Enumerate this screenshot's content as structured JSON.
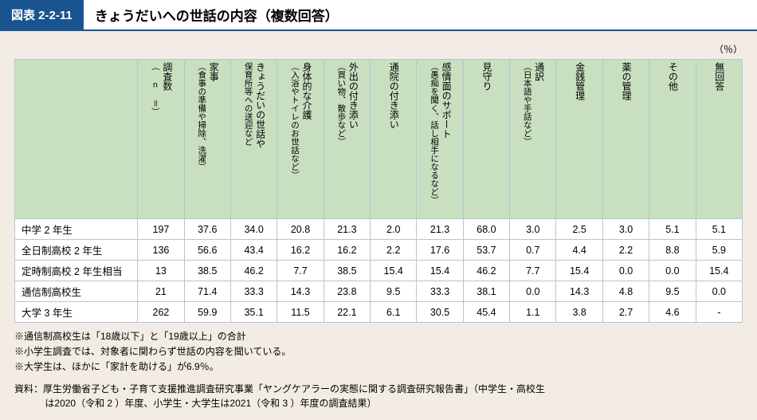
{
  "title": {
    "tag": "図表 2-2-11",
    "text": "きょうだいへの世話の内容（複数回答）"
  },
  "unit_label": "（％）",
  "table": {
    "columns": [
      {
        "label": "調査数",
        "sub": "（ n ＝）"
      },
      {
        "label": "家事",
        "sub": "（食事の準備や掃除、洗濯）"
      },
      {
        "label": "きょうだいの世話や",
        "sub": "保育所等への送迎など"
      },
      {
        "label": "身体的な介護",
        "sub": "（入浴やトイレのお世話など）"
      },
      {
        "label": "外出の付き添い",
        "sub": "（買い物、散歩など）"
      },
      {
        "label": "通院の付き添い",
        "sub": ""
      },
      {
        "label": "感情面のサポート",
        "sub": "（愚痴を聞く、話し相手になるなど）"
      },
      {
        "label": "見守り",
        "sub": ""
      },
      {
        "label": "通訳",
        "sub": "（日本語や手話など）"
      },
      {
        "label": "金銭管理",
        "sub": ""
      },
      {
        "label": "薬の管理",
        "sub": ""
      },
      {
        "label": "その他",
        "sub": ""
      },
      {
        "label": "無回答",
        "sub": ""
      }
    ],
    "rows": [
      {
        "label": "中学 2 年生",
        "cells": [
          "197",
          "37.6",
          "34.0",
          "20.8",
          "21.3",
          "2.0",
          "21.3",
          "68.0",
          "3.0",
          "2.5",
          "3.0",
          "5.1",
          "5.1"
        ]
      },
      {
        "label": "全日制高校 2 年生",
        "cells": [
          "136",
          "56.6",
          "43.4",
          "16.2",
          "16.2",
          "2.2",
          "17.6",
          "53.7",
          "0.7",
          "4.4",
          "2.2",
          "8.8",
          "5.9"
        ]
      },
      {
        "label": "定時制高校 2 年生相当",
        "cells": [
          "13",
          "38.5",
          "46.2",
          "7.7",
          "38.5",
          "15.4",
          "15.4",
          "46.2",
          "7.7",
          "15.4",
          "0.0",
          "0.0",
          "15.4"
        ]
      },
      {
        "label": "通信制高校生",
        "cells": [
          "21",
          "71.4",
          "33.3",
          "14.3",
          "23.8",
          "9.5",
          "33.3",
          "38.1",
          "0.0",
          "14.3",
          "4.8",
          "9.5",
          "0.0"
        ]
      },
      {
        "label": "大学 3 年生",
        "cells": [
          "262",
          "59.9",
          "35.1",
          "11.5",
          "22.1",
          "6.1",
          "30.5",
          "45.4",
          "1.1",
          "3.8",
          "2.7",
          "4.6",
          "-"
        ]
      }
    ]
  },
  "notes": {
    "n1": "※通信制高校生は「18歳以下」と「19歳以上」の合計",
    "n2": "※小学生調査では、対象者に関わらず世話の内容を聞いている。",
    "n3": "※大学生は、ほかに「家計を助ける」が6.9％。"
  },
  "source": {
    "line1": "資料：厚生労働省子ども・子育て支援推進調査研究事業「ヤングケアラーの実態に関する調査研究報告書」（中学生・高校生",
    "line2": "は2020（令和 2 ）年度、小学生・大学生は2021（令和 3 ）年度の調査結果）"
  },
  "colors": {
    "primary": "#1a5490",
    "header_bg": "#c8e0c0",
    "content_bg": "#f2ece4",
    "border": "#b8c4d4"
  }
}
